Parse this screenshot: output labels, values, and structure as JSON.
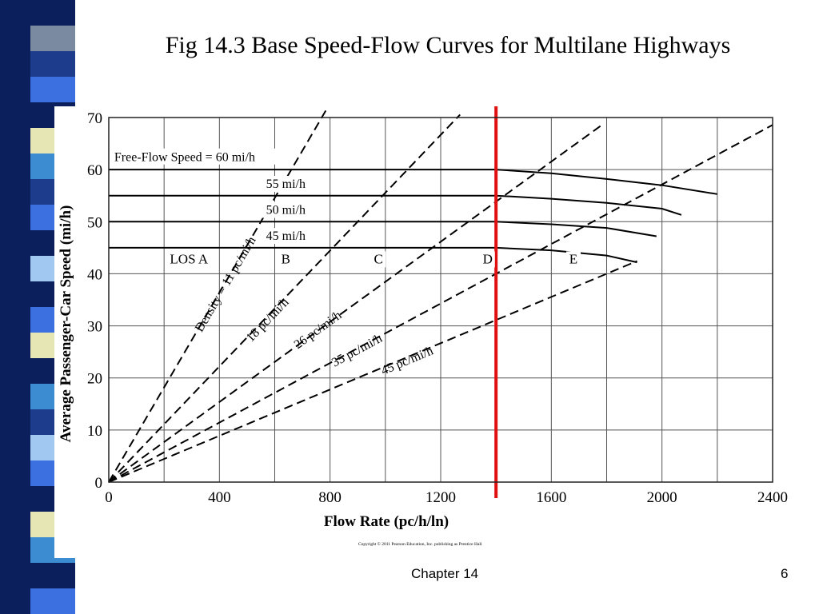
{
  "slide": {
    "title": "Fig 14.3 Base Speed-Flow Curves for Multilane Highways",
    "footer_left": "Chapter 14",
    "page_number": "6",
    "stripe_colors": [
      "#0a1f5c",
      "#7a8aa0",
      "#1e3c8c",
      "#3c6fe0",
      "#0a1f5c",
      "#e6e6b4",
      "#3c8cd2",
      "#1e3c8c",
      "#3c6fe0",
      "#0a1f5c",
      "#a0c8f0",
      "#0a1f5c",
      "#3c6fe0",
      "#e6e6b4",
      "#0a1f5c",
      "#3c8cd2",
      "#1e3c8c",
      "#a0c8f0",
      "#3c6fe0",
      "#0a1f5c",
      "#e6e6b4",
      "#3c8cd2",
      "#0a1f5c",
      "#3c6fe0"
    ]
  },
  "chart_data": {
    "type": "line",
    "xlabel": "Flow Rate (pc/h/ln)",
    "ylabel": "Average Passenger-Car Speed (mi/h)",
    "xlim": [
      0,
      2400
    ],
    "ylim": [
      0,
      70
    ],
    "xticks": [
      0,
      400,
      800,
      1200,
      1600,
      2000,
      2400
    ],
    "yticks": [
      0,
      10,
      20,
      30,
      40,
      50,
      60,
      70
    ],
    "grid": true,
    "copyright": "Copyright © 2011 Pearson Education, Inc. publishing as Prentice Hall",
    "series": [
      {
        "name": "Free-Flow Speed = 60 mi/h",
        "style": "solid",
        "points": [
          [
            0,
            60
          ],
          [
            1400,
            60
          ],
          [
            1600,
            59.3
          ],
          [
            1800,
            58.2
          ],
          [
            2000,
            57
          ],
          [
            2200,
            55.3
          ]
        ]
      },
      {
        "name": "55 mi/h",
        "style": "solid",
        "points": [
          [
            0,
            55
          ],
          [
            1400,
            55
          ],
          [
            1600,
            54.4
          ],
          [
            1800,
            53.6
          ],
          [
            2000,
            52.5
          ],
          [
            2070,
            51.3
          ]
        ]
      },
      {
        "name": "50 mi/h",
        "style": "solid",
        "points": [
          [
            0,
            50
          ],
          [
            1400,
            50
          ],
          [
            1600,
            49.5
          ],
          [
            1800,
            48.8
          ],
          [
            1980,
            47.2
          ]
        ]
      },
      {
        "name": "45 mi/h",
        "style": "solid",
        "points": [
          [
            0,
            45
          ],
          [
            1400,
            45
          ],
          [
            1600,
            44.5
          ],
          [
            1800,
            43.5
          ],
          [
            1910,
            42.2
          ]
        ]
      }
    ],
    "density_lines": [
      {
        "label": "Density = 11 pc/mi/h",
        "density": 11,
        "x_end": 790
      },
      {
        "label": "18 pc/mi/h",
        "density": 18,
        "x_end": 1270
      },
      {
        "label": "26 pc/mi/h",
        "density": 26,
        "x_end": 1790
      },
      {
        "label": "35 pc/mi/h",
        "density": 35,
        "x_end": 2400
      },
      {
        "label": "45 pc/mi/h",
        "density": 45,
        "x_end": 1910
      }
    ],
    "los_labels": [
      {
        "text": "LOS A",
        "x": 290,
        "y": 42
      },
      {
        "text": "B",
        "x": 640,
        "y": 42
      },
      {
        "text": "C",
        "x": 975,
        "y": 42
      },
      {
        "text": "D",
        "x": 1370,
        "y": 42
      },
      {
        "text": "E",
        "x": 1680,
        "y": 42
      }
    ],
    "speed_labels": [
      {
        "text": "55 mi/h",
        "x": 640,
        "y": 56.5
      },
      {
        "text": "50 mi/h",
        "x": 640,
        "y": 51.5
      },
      {
        "text": "45 mi/h",
        "x": 640,
        "y": 46.5
      }
    ],
    "free_flow_label": {
      "text": "Free-Flow Speed = 60 mi/h",
      "x": 20,
      "y": 61.6
    },
    "annotation_line": {
      "x": 1400,
      "color": "#e01010"
    }
  }
}
